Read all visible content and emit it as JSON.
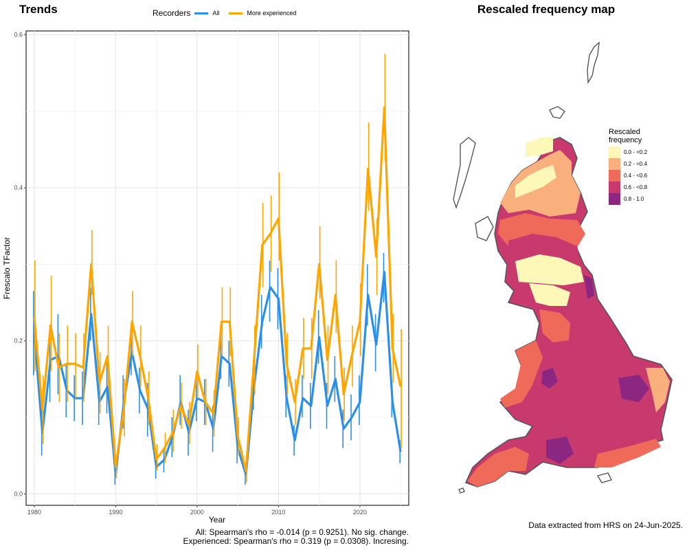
{
  "trends_title": "Trends",
  "map_title": "Rescaled frequency map",
  "legend": {
    "title": "Recorders",
    "items": [
      {
        "label": "All",
        "color": "#2b8fe8"
      },
      {
        "label": "More experienced",
        "color": "#ffa500"
      }
    ]
  },
  "chart_data": {
    "type": "line",
    "xlabel": "Year",
    "ylabel": "Frescalo TFactor",
    "xlim": [
      1979,
      2026
    ],
    "ylim": [
      -0.015,
      0.605
    ],
    "xticks": [
      1980,
      1990,
      2000,
      2010,
      2020
    ],
    "yticks": [
      0.0,
      0.2,
      0.4,
      0.6
    ],
    "ytick_labels": [
      "0.0",
      "0.2",
      "0.4",
      "0.6"
    ],
    "grid": true,
    "x": [
      1980,
      1981,
      1982,
      1983,
      1984,
      1985,
      1986,
      1987,
      1988,
      1989,
      1990,
      1991,
      1992,
      1993,
      1994,
      1995,
      1996,
      1997,
      1998,
      1999,
      2000,
      2001,
      2002,
      2003,
      2004,
      2005,
      2006,
      2007,
      2008,
      2009,
      2010,
      2011,
      2012,
      2013,
      2014,
      2015,
      2016,
      2017,
      2018,
      2019,
      2020,
      2021,
      2022,
      2023,
      2024,
      2025
    ],
    "series": [
      {
        "name": "All",
        "color": "#2b8fe8",
        "values": [
          0.21,
          0.08,
          0.175,
          0.18,
          0.135,
          0.125,
          0.125,
          0.235,
          0.12,
          0.14,
          0.025,
          0.12,
          0.185,
          0.135,
          0.11,
          0.035,
          0.045,
          0.075,
          0.12,
          0.08,
          0.125,
          0.12,
          0.085,
          0.18,
          0.17,
          0.06,
          0.025,
          0.14,
          0.225,
          0.27,
          0.255,
          0.125,
          0.07,
          0.125,
          0.115,
          0.205,
          0.115,
          0.15,
          0.085,
          0.1,
          0.12,
          0.26,
          0.195,
          0.29,
          0.12,
          0.055
        ],
        "lower": [
          0.155,
          0.05,
          0.12,
          0.13,
          0.1,
          0.095,
          0.09,
          0.2,
          0.09,
          0.105,
          0.012,
          0.085,
          0.155,
          0.105,
          0.075,
          0.02,
          0.028,
          0.048,
          0.09,
          0.05,
          0.095,
          0.09,
          0.055,
          0.15,
          0.14,
          0.04,
          0.012,
          0.11,
          0.19,
          0.225,
          0.215,
          0.1,
          0.05,
          0.1,
          0.085,
          0.17,
          0.085,
          0.12,
          0.06,
          0.07,
          0.09,
          0.22,
          0.16,
          0.25,
          0.1,
          0.04
        ],
        "upper": [
          0.265,
          0.115,
          0.22,
          0.235,
          0.17,
          0.155,
          0.16,
          0.27,
          0.15,
          0.175,
          0.04,
          0.155,
          0.215,
          0.165,
          0.145,
          0.05,
          0.06,
          0.1,
          0.155,
          0.11,
          0.155,
          0.15,
          0.115,
          0.215,
          0.2,
          0.08,
          0.04,
          0.175,
          0.26,
          0.305,
          0.295,
          0.155,
          0.09,
          0.155,
          0.145,
          0.24,
          0.145,
          0.18,
          0.11,
          0.13,
          0.155,
          0.3,
          0.235,
          0.315,
          0.14,
          0.07
        ]
      },
      {
        "name": "More experienced",
        "color": "#ffa500",
        "values": [
          0.23,
          0.11,
          0.22,
          0.165,
          0.17,
          0.17,
          0.165,
          0.3,
          0.145,
          0.18,
          0.035,
          0.11,
          0.225,
          0.18,
          0.125,
          0.045,
          0.06,
          0.08,
          0.115,
          0.09,
          0.16,
          0.12,
          0.105,
          0.225,
          0.225,
          0.075,
          0.03,
          0.175,
          0.325,
          0.34,
          0.36,
          0.17,
          0.12,
          0.19,
          0.19,
          0.3,
          0.175,
          0.26,
          0.13,
          0.18,
          0.225,
          0.425,
          0.31,
          0.505,
          0.19,
          0.14
        ],
        "lower": [
          0.16,
          0.065,
          0.16,
          0.12,
          0.12,
          0.125,
          0.12,
          0.26,
          0.105,
          0.14,
          0.02,
          0.075,
          0.18,
          0.14,
          0.09,
          0.03,
          0.04,
          0.055,
          0.085,
          0.065,
          0.125,
          0.09,
          0.075,
          0.18,
          0.18,
          0.05,
          0.015,
          0.13,
          0.27,
          0.29,
          0.305,
          0.13,
          0.09,
          0.15,
          0.15,
          0.255,
          0.13,
          0.21,
          0.095,
          0.14,
          0.18,
          0.37,
          0.26,
          0.435,
          0.145,
          0.06
        ],
        "upper": [
          0.305,
          0.155,
          0.285,
          0.21,
          0.22,
          0.21,
          0.21,
          0.345,
          0.185,
          0.22,
          0.05,
          0.15,
          0.265,
          0.22,
          0.16,
          0.065,
          0.08,
          0.11,
          0.145,
          0.12,
          0.195,
          0.15,
          0.135,
          0.27,
          0.27,
          0.1,
          0.05,
          0.22,
          0.38,
          0.39,
          0.42,
          0.21,
          0.15,
          0.23,
          0.23,
          0.35,
          0.22,
          0.305,
          0.165,
          0.22,
          0.275,
          0.485,
          0.36,
          0.575,
          0.235,
          0.215
        ]
      }
    ]
  },
  "stats": {
    "line1": "All: Spearman's rho = -0.014 (p = 0.9251). No sig. change.",
    "line2": "Experienced: Spearman's rho = 0.319 (p = 0.0308). Incresing."
  },
  "source_note": "Data extracted from HRS on 24-Jun-2025.",
  "map_legend": {
    "title_line1": "Rescaled",
    "title_line2": "frequency",
    "items": [
      {
        "label": "0.0 - <0.2",
        "color": "#fdf8b8"
      },
      {
        "label": "0.2 - <0.4",
        "color": "#f9b07c"
      },
      {
        "label": "0.4 - <0.6",
        "color": "#ef6a58"
      },
      {
        "label": "0.6 - <0.8",
        "color": "#c83a6e"
      },
      {
        "label": "0.8 - 1.0",
        "color": "#8c2781"
      }
    ]
  }
}
